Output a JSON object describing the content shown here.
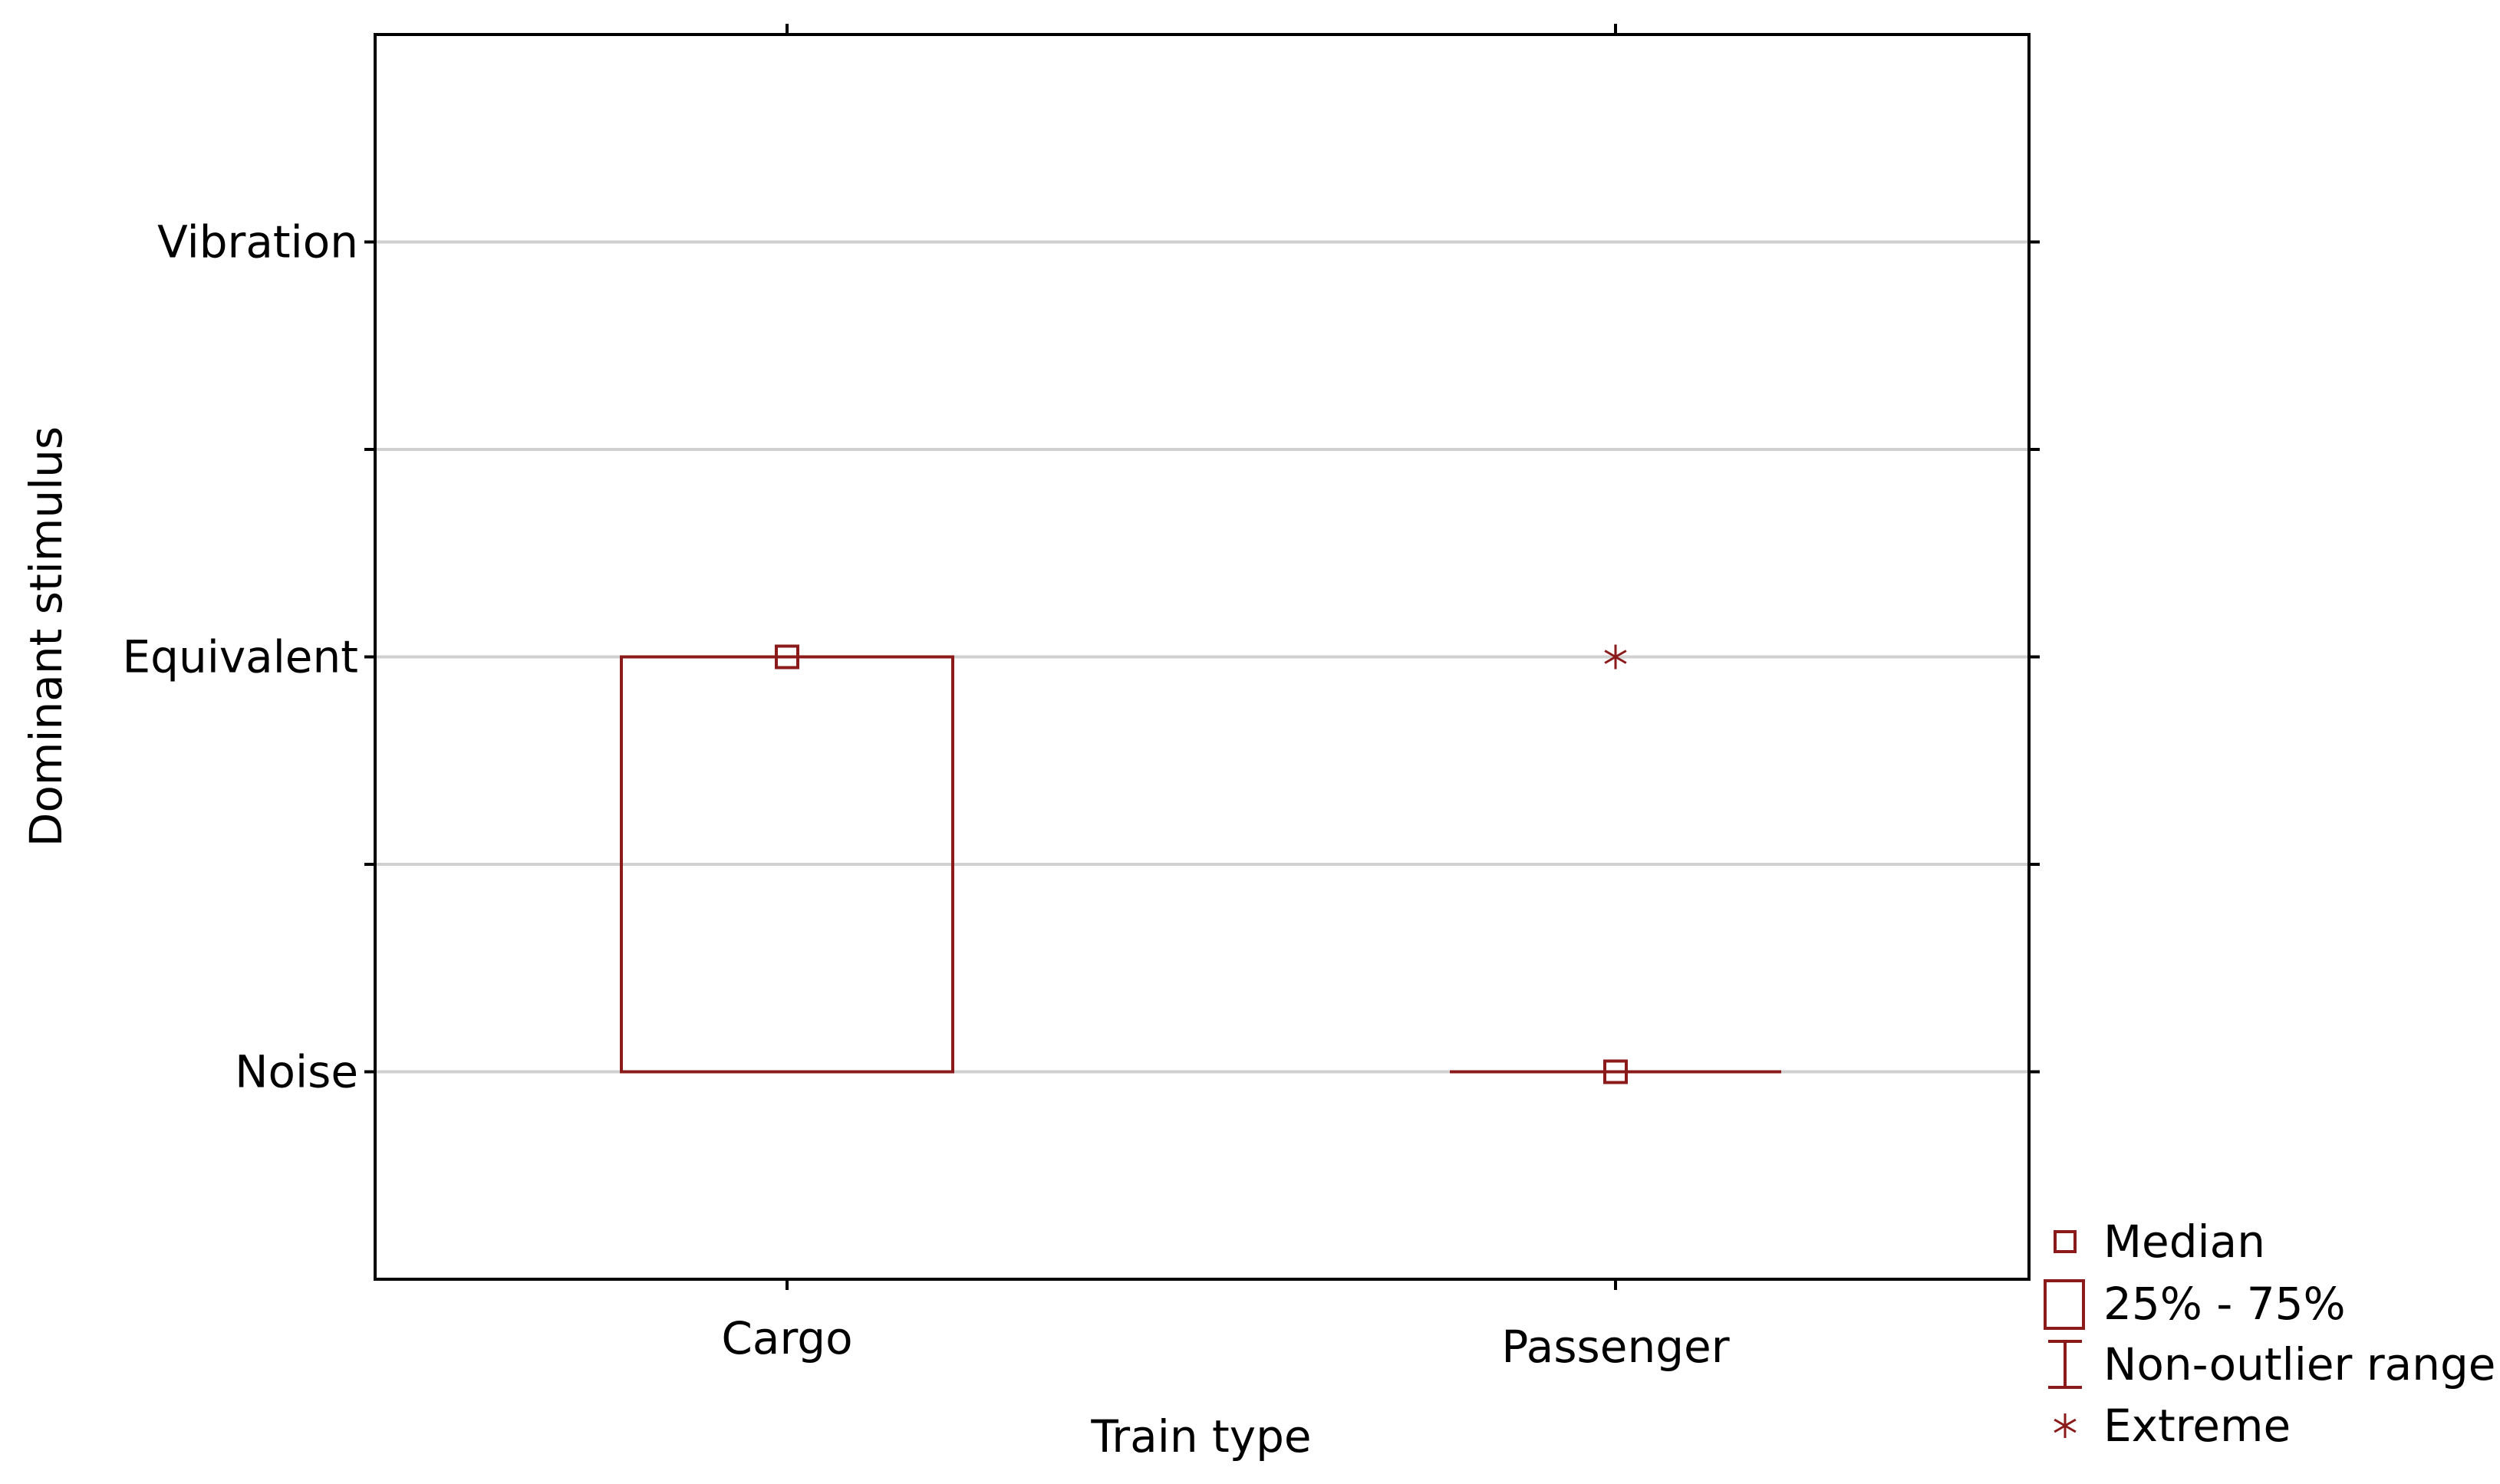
{
  "chart_data": {
    "type": "boxplot",
    "title": "",
    "xlabel": "Train type",
    "ylabel": "Dominant stimulus",
    "categories": [
      "Cargo",
      "Passenger"
    ],
    "y_levels": [
      {
        "value": 1,
        "label": "Noise"
      },
      {
        "value": 2,
        "label": "Equivalent"
      },
      {
        "value": 3,
        "label": "Vibration"
      }
    ],
    "ylim": [
      0.5,
      3.5
    ],
    "y_minor_gridlines": [
      1.5,
      2.5
    ],
    "grid": true,
    "boxes": [
      {
        "category": "Cargo",
        "median": 2,
        "q1": 1,
        "q3": 2,
        "whisker_low": 1,
        "whisker_high": 2,
        "extremes": []
      },
      {
        "category": "Passenger",
        "median": 1,
        "q1": 1,
        "q3": 1,
        "whisker_low": 1,
        "whisker_high": 1,
        "extremes": [
          2
        ]
      }
    ],
    "legend": {
      "placement": "bottom-right",
      "items": [
        {
          "symbol": "median",
          "label": "Median"
        },
        {
          "symbol": "box",
          "label": "25% - 75%"
        },
        {
          "symbol": "whisker",
          "label": "Non-outlier range"
        },
        {
          "symbol": "extreme",
          "label": "Extreme"
        }
      ]
    },
    "colors": {
      "series": "#8b1a1a",
      "grid": "#d0d0d0",
      "axis": "#000000"
    }
  }
}
